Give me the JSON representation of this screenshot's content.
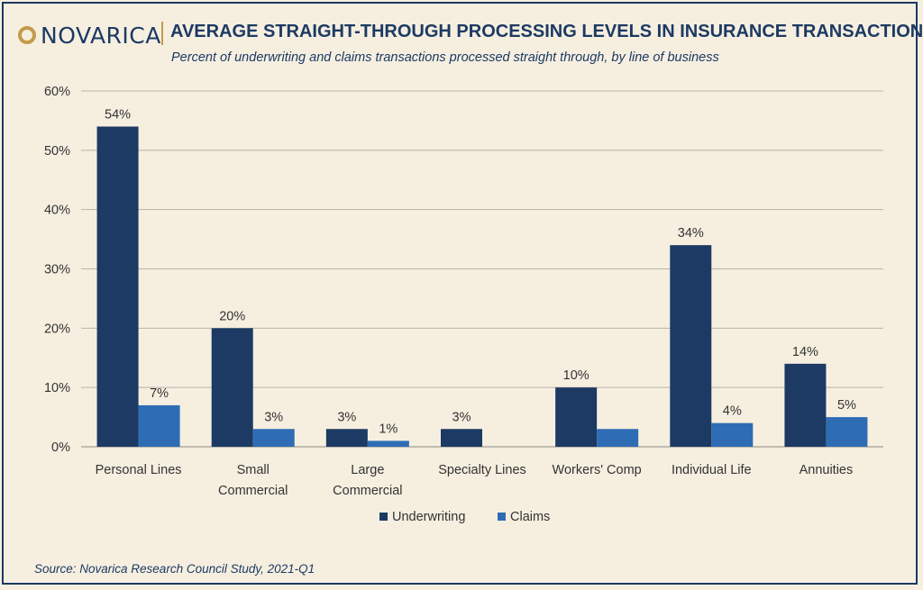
{
  "brand": {
    "name": "NOVARICA"
  },
  "header": {
    "title": "AVERAGE STRAIGHT-THROUGH PROCESSING LEVELS IN INSURANCE TRANSACTIONS",
    "subtitle": "Percent of underwriting and claims transactions processed straight through, by line of business"
  },
  "footer": {
    "source": "Source: Novarica Research Council Study, 2021-Q1"
  },
  "colors": {
    "underwriting": "#1c3a63",
    "claims": "#2e6db4",
    "gridline": "#b8b4aa",
    "text": "#333333",
    "accent": "#c49a4a"
  },
  "chart_data": {
    "type": "bar",
    "categories": [
      [
        "Personal Lines"
      ],
      [
        "Small",
        "Commercial"
      ],
      [
        "Large",
        "Commercial"
      ],
      [
        "Specialty Lines"
      ],
      [
        "Workers' Comp"
      ],
      [
        "Individual Life"
      ],
      [
        "Annuities"
      ]
    ],
    "series": [
      {
        "name": "Underwriting",
        "values": [
          54,
          20,
          3,
          3,
          10,
          34,
          14
        ],
        "labels": [
          "54%",
          "20%",
          "3%",
          "3%",
          "10%",
          "34%",
          "14%"
        ]
      },
      {
        "name": "Claims",
        "values": [
          7,
          3,
          1,
          null,
          3,
          4,
          5
        ],
        "labels": [
          "7%",
          "3%",
          "1%",
          "",
          "",
          "4%",
          "5%"
        ]
      }
    ],
    "ylim": [
      0,
      60
    ],
    "yticks": [
      0,
      10,
      20,
      30,
      40,
      50,
      60
    ],
    "ytick_labels": [
      "0%",
      "10%",
      "20%",
      "30%",
      "40%",
      "50%",
      "60%"
    ],
    "grid": true,
    "legend_position": "bottom"
  }
}
